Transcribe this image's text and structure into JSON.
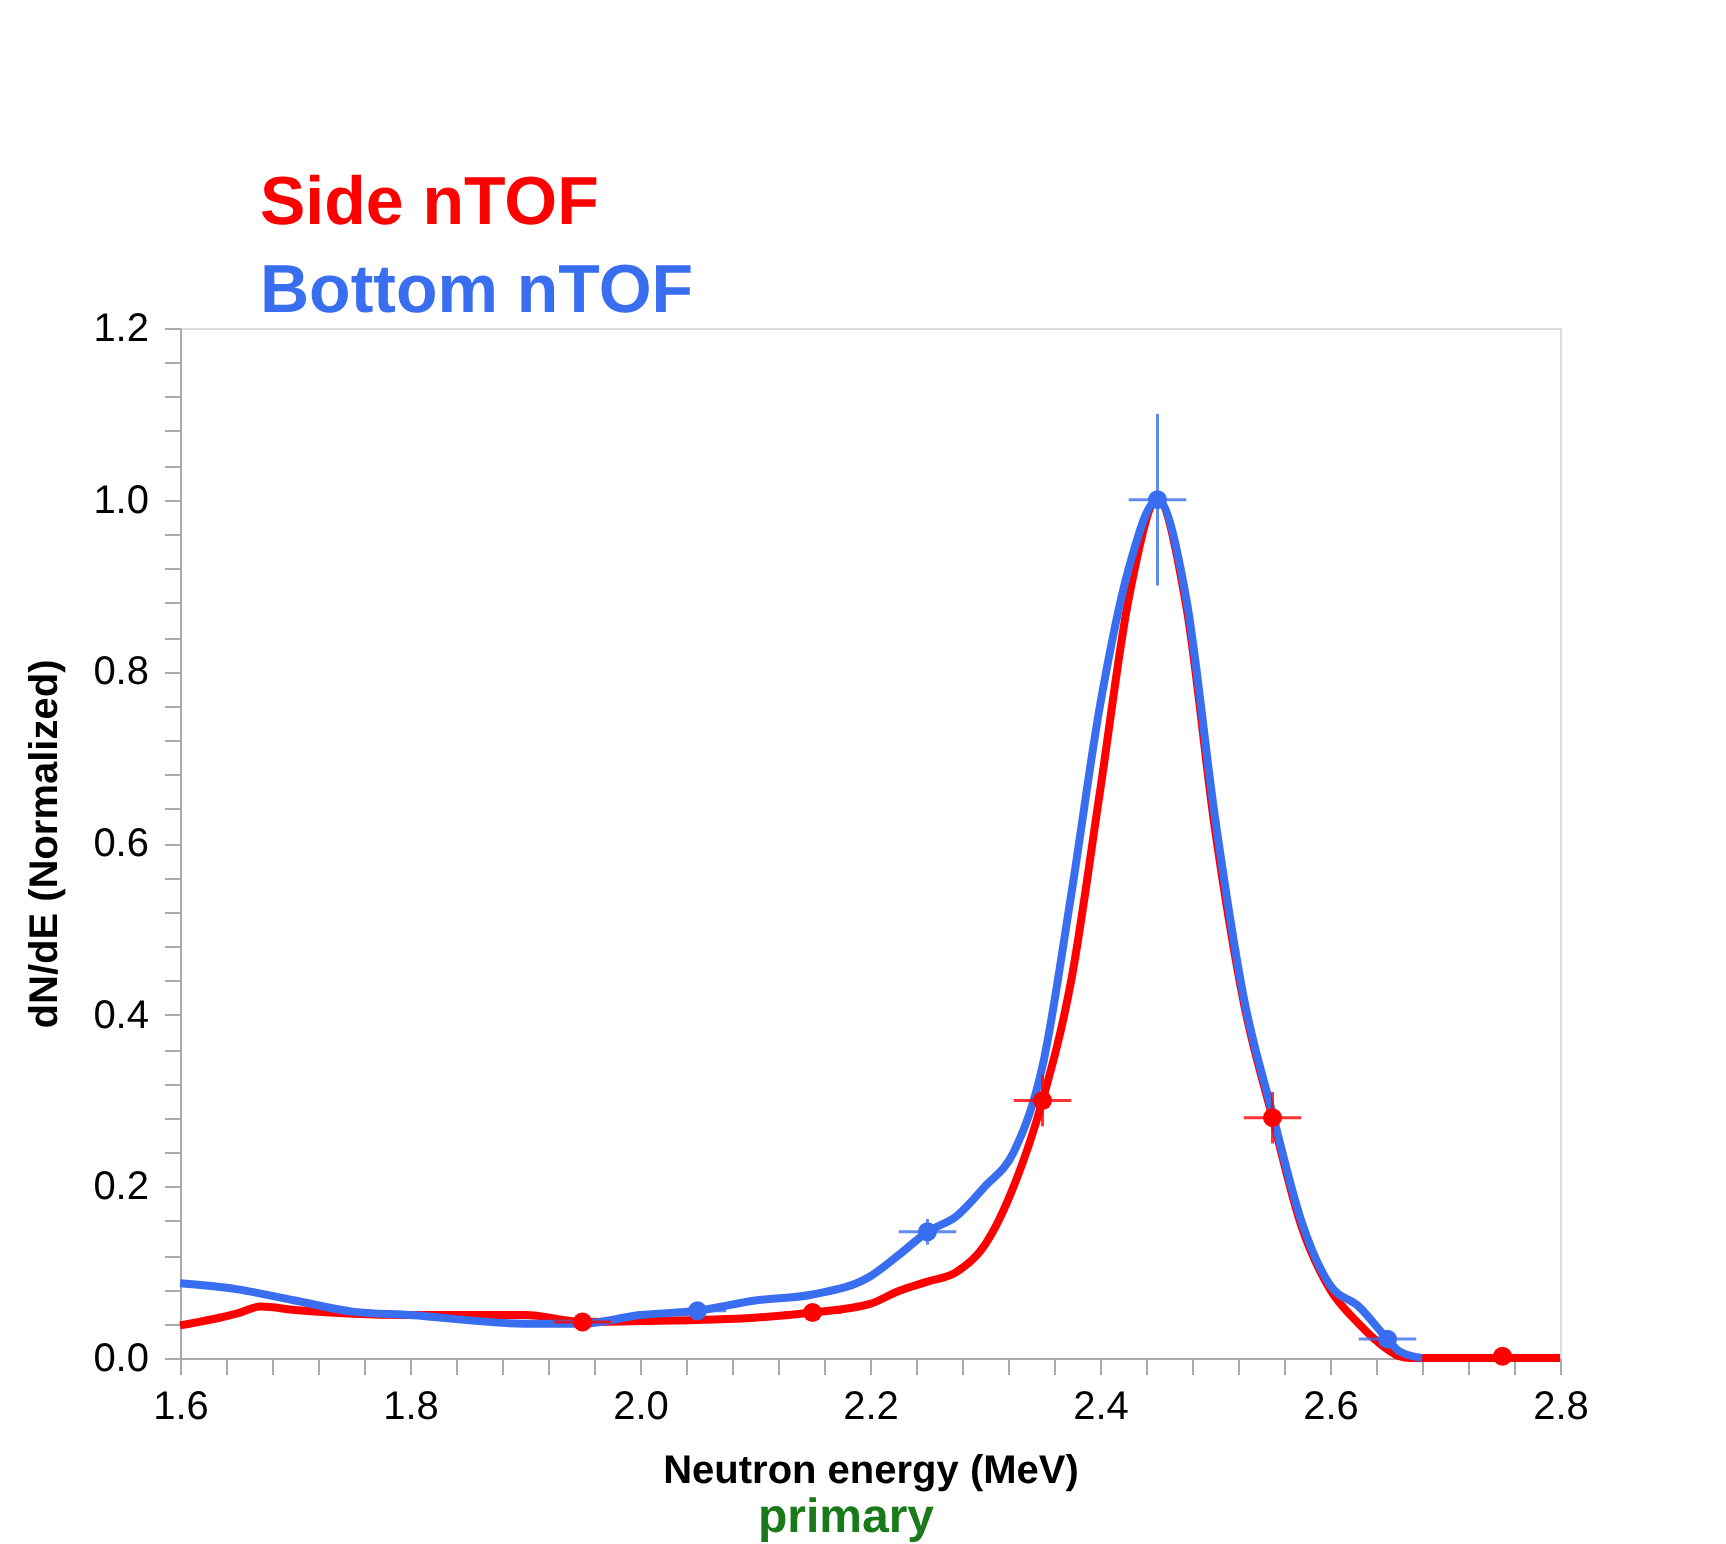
{
  "chart_data": {
    "type": "line",
    "xlabel": "Neutron energy (MeV)",
    "ylabel": "dN/dE (Normalized)",
    "annotations": [
      "primary"
    ],
    "xlim": [
      1.6,
      2.8
    ],
    "xticks": [
      1.6,
      {
        "value": 1.64,
        "label": null
      },
      {
        "value": 1.68,
        "label": null
      },
      {
        "value": 1.72,
        "label": null
      },
      {
        "value": 1.76,
        "label": null
      },
      1.8,
      {
        "value": 1.84,
        "label": null
      },
      {
        "value": 1.88,
        "label": null
      },
      {
        "value": 1.92,
        "label": null
      },
      {
        "value": 1.96,
        "label": null
      },
      {
        "value": 2.0,
        "label": "2.0"
      },
      {
        "value": 2.04,
        "label": null
      },
      {
        "value": 2.08,
        "label": null
      },
      {
        "value": 2.12,
        "label": null
      },
      {
        "value": 2.16,
        "label": null
      },
      2.2,
      {
        "value": 2.24,
        "label": null
      },
      {
        "value": 2.28,
        "label": null
      },
      {
        "value": 2.32,
        "label": null
      },
      {
        "value": 2.36,
        "label": null
      },
      2.4,
      {
        "value": 2.44,
        "label": null
      },
      {
        "value": 2.48,
        "label": null
      },
      {
        "value": 2.52,
        "label": null
      },
      {
        "value": 2.56,
        "label": null
      },
      2.6,
      {
        "value": 2.64,
        "label": null
      },
      {
        "value": 2.68,
        "label": null
      },
      {
        "value": 2.72,
        "label": null
      },
      {
        "value": 2.76,
        "label": null
      },
      2.8
    ],
    "ylim": [
      0,
      1.2
    ],
    "yticks": [
      {
        "value": 0,
        "label": "0.0"
      },
      {
        "value": 0.04,
        "label": null
      },
      {
        "value": 0.08,
        "label": null
      },
      {
        "value": 0.12,
        "label": null
      },
      {
        "value": 0.16,
        "label": null
      },
      0.2,
      {
        "value": 0.24,
        "label": null
      },
      {
        "value": 0.28,
        "label": null
      },
      {
        "value": 0.32,
        "label": null
      },
      {
        "value": 0.36,
        "label": null
      },
      0.4,
      {
        "value": 0.44,
        "label": null
      },
      {
        "value": 0.48,
        "label": null
      },
      {
        "value": 0.52,
        "label": null
      },
      {
        "value": 0.56,
        "label": null
      },
      0.6,
      {
        "value": 0.64,
        "label": null
      },
      {
        "value": 0.68,
        "label": null
      },
      {
        "value": 0.72,
        "label": null
      },
      {
        "value": 0.76,
        "label": null
      },
      0.8,
      {
        "value": 0.84,
        "label": null
      },
      {
        "value": 0.88,
        "label": null
      },
      {
        "value": 0.92,
        "label": null
      },
      {
        "value": 0.96,
        "label": null
      },
      {
        "value": 1.0,
        "label": "1.0"
      },
      {
        "value": 1.04,
        "label": null
      },
      {
        "value": 1.08,
        "label": null
      },
      {
        "value": 1.12,
        "label": null
      },
      {
        "value": 1.16,
        "label": null
      },
      1.2
    ],
    "grid": false,
    "legend": "top left",
    "line_style": "solid",
    "series": [
      {
        "name": "Side nTOF",
        "type": "line",
        "color": "#ff0000",
        "marker": "none",
        "x": [
          1.6,
          1.65,
          1.67,
          1.7,
          1.8,
          1.9,
          1.95,
          2.0,
          2.1,
          2.15,
          2.2,
          2.225,
          2.25,
          2.275,
          2.3,
          2.325,
          2.35,
          2.375,
          2.4,
          2.425,
          2.45,
          2.475,
          2.5,
          2.525,
          2.55,
          2.575,
          2.6,
          2.625,
          2.65,
          2.66,
          2.67,
          2.8
        ],
        "values": [
          0.038,
          0.052,
          0.06,
          0.056,
          0.05,
          0.05,
          0.042,
          0.043,
          0.047,
          0.053,
          0.063,
          0.078,
          0.089,
          0.1,
          0.132,
          0.2,
          0.3,
          0.44,
          0.66,
          0.885,
          1.0,
          0.876,
          0.616,
          0.414,
          0.28,
          0.154,
          0.08,
          0.04,
          0.01,
          0.002,
          0,
          0
        ]
      },
      {
        "name": "Bottom nTOF",
        "type": "line",
        "color": "#3a6ef0",
        "marker": "none",
        "x": [
          1.6,
          1.65,
          1.7,
          1.75,
          1.8,
          1.9,
          1.95,
          2.0,
          2.05,
          2.1,
          2.15,
          2.2,
          2.225,
          2.25,
          2.275,
          2.3,
          2.325,
          2.35,
          2.375,
          2.4,
          2.425,
          2.45,
          2.475,
          2.5,
          2.525,
          2.55,
          2.575,
          2.6,
          2.625,
          2.65,
          2.66,
          2.68
        ],
        "values": [
          0.087,
          0.08,
          0.067,
          0.054,
          0.05,
          0.04,
          0.04,
          0.05,
          0.055,
          0.067,
          0.074,
          0.095,
          0.12,
          0.147,
          0.165,
          0.2,
          0.24,
          0.34,
          0.54,
          0.76,
          0.92,
          1.0,
          0.885,
          0.63,
          0.42,
          0.285,
          0.16,
          0.085,
          0.06,
          0.022,
          0.008,
          0
        ]
      },
      {
        "type": "scatter",
        "color": "#ff0000",
        "marker": "circle",
        "x": [
          1.95,
          2.15,
          2.35,
          2.55,
          2.75
        ],
        "values": [
          0.042,
          0.053,
          0.3,
          0.28,
          0.002
        ],
        "errors": [
          0.005,
          0.005,
          0.03,
          0.03,
          0.005
        ],
        "xerrors": [
          0.025,
          0.025,
          0.025,
          0.025,
          0.025
        ]
      },
      {
        "type": "scatter",
        "color": "#3a6ef0",
        "marker": "circle",
        "x": [
          2.05,
          2.25,
          2.45,
          2.65
        ],
        "values": [
          0.055,
          0.147,
          1.0,
          0.022
        ],
        "errors": [
          0.005,
          0.015,
          0.1,
          0.005
        ],
        "xerrors": [
          0.025,
          0.025,
          0.025,
          0.025
        ]
      }
    ]
  }
}
